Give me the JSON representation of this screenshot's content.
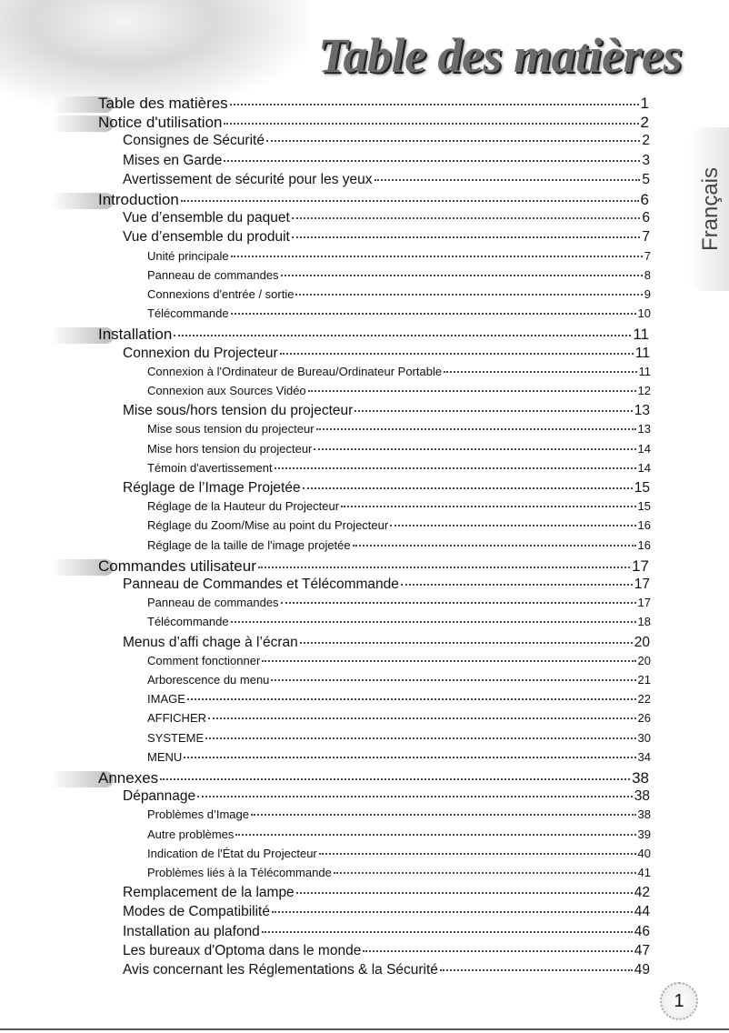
{
  "header": {
    "title": "Table des matières",
    "language_tab": "Français"
  },
  "footer": {
    "page_number": 1
  },
  "toc": [
    {
      "title": "Table des matières ",
      "page": 1,
      "items": []
    },
    {
      "title": "Notice d'utilisation ",
      "page": 2,
      "items": [
        {
          "title": "Consignes de Sécurité ",
          "page": 2,
          "items": []
        },
        {
          "title": "Mises en Garde ",
          "page": 3,
          "items": []
        },
        {
          "title": "Avertissement de sécurité pour les yeux ",
          "page": 5,
          "items": []
        }
      ]
    },
    {
      "title": "Introduction",
      "page": 6,
      "items": [
        {
          "title": "Vue d’ensemble du paquet ",
          "page": 6,
          "items": []
        },
        {
          "title": "Vue d’ensemble du produit ",
          "page": 7,
          "items": [
            {
              "title": "Unité principale ",
              "page": 7
            },
            {
              "title": "Panneau de commandes ",
              "page": 8
            },
            {
              "title": "Connexions d'entrée / sortie ",
              "page": 9
            },
            {
              "title": "Télécommande ",
              "page": 10
            }
          ]
        }
      ]
    },
    {
      "title": "Installation ",
      "page": 11,
      "items": [
        {
          "title": "Connexion du Projecteur ",
          "page": 11,
          "items": [
            {
              "title": "Connexion à l'Ordinateur de Bureau/Ordinateur Portable ",
              "page": 11
            },
            {
              "title": "Connexion aux Sources Vidéo ",
              "page": 12
            }
          ]
        },
        {
          "title": "Mise sous/hors tension du projecteur ",
          "page": 13,
          "items": [
            {
              "title": "Mise sous tension du projecteur ",
              "page": 13
            },
            {
              "title": "Mise hors tension du projecteur ",
              "page": 14
            },
            {
              "title": "Témoin d'avertissement ",
              "page": 14
            }
          ]
        },
        {
          "title": "Réglage de l’Image Projetée ",
          "page": 15,
          "items": [
            {
              "title": "Réglage de la Hauteur du Projecteur ",
              "page": 15
            },
            {
              "title": "Réglage du Zoom/Mise au point du Projecteur ",
              "page": 16
            },
            {
              "title": "Réglage de la taille de l'image projetée ",
              "page": 16
            }
          ]
        }
      ]
    },
    {
      "title": "Commandes utilisateur",
      "page": 17,
      "items": [
        {
          "title": "Panneau de Commandes et Télécommande ",
          "page": 17,
          "items": [
            {
              "title": "Panneau de commandes ",
              "page": 17
            },
            {
              "title": "Télécommande ",
              "page": 18
            }
          ]
        },
        {
          "title": "Menus d’affi chage à l’écran ",
          "page": 20,
          "items": [
            {
              "title": "Comment fonctionner ",
              "page": 20
            },
            {
              "title": "Arborescence du menu ",
              "page": 21
            },
            {
              "title": "IMAGE ",
              "page": 22
            },
            {
              "title": "AFFICHER ",
              "page": 26
            },
            {
              "title": "SYSTEME ",
              "page": 30
            },
            {
              "title": "MENU ",
              "page": 34
            }
          ]
        }
      ]
    },
    {
      "title": "Annexes ",
      "page": 38,
      "items": [
        {
          "title": "Dépannage ",
          "page": 38,
          "items": [
            {
              "title": "Problèmes d’Image ",
              "page": 38
            },
            {
              "title": "Autre problèmes ",
              "page": 39
            },
            {
              "title": "Indication de l'État du Projecteur ",
              "page": 40
            },
            {
              "title": "Problèmes liés à la Télécommande ",
              "page": 41
            }
          ]
        },
        {
          "title": "Remplacement de la lampe ",
          "page": 42,
          "items": []
        },
        {
          "title": "Modes de Compatibilité ",
          "page": 44,
          "items": []
        },
        {
          "title": "Installation au plafond",
          "page": 46,
          "items": []
        },
        {
          "title": "Les bureaux d'Optoma dans le monde ",
          "page": 47,
          "items": []
        },
        {
          "title": "Avis concernant les Réglementations & la Sécurité ",
          "page": 49,
          "items": []
        }
      ]
    }
  ]
}
